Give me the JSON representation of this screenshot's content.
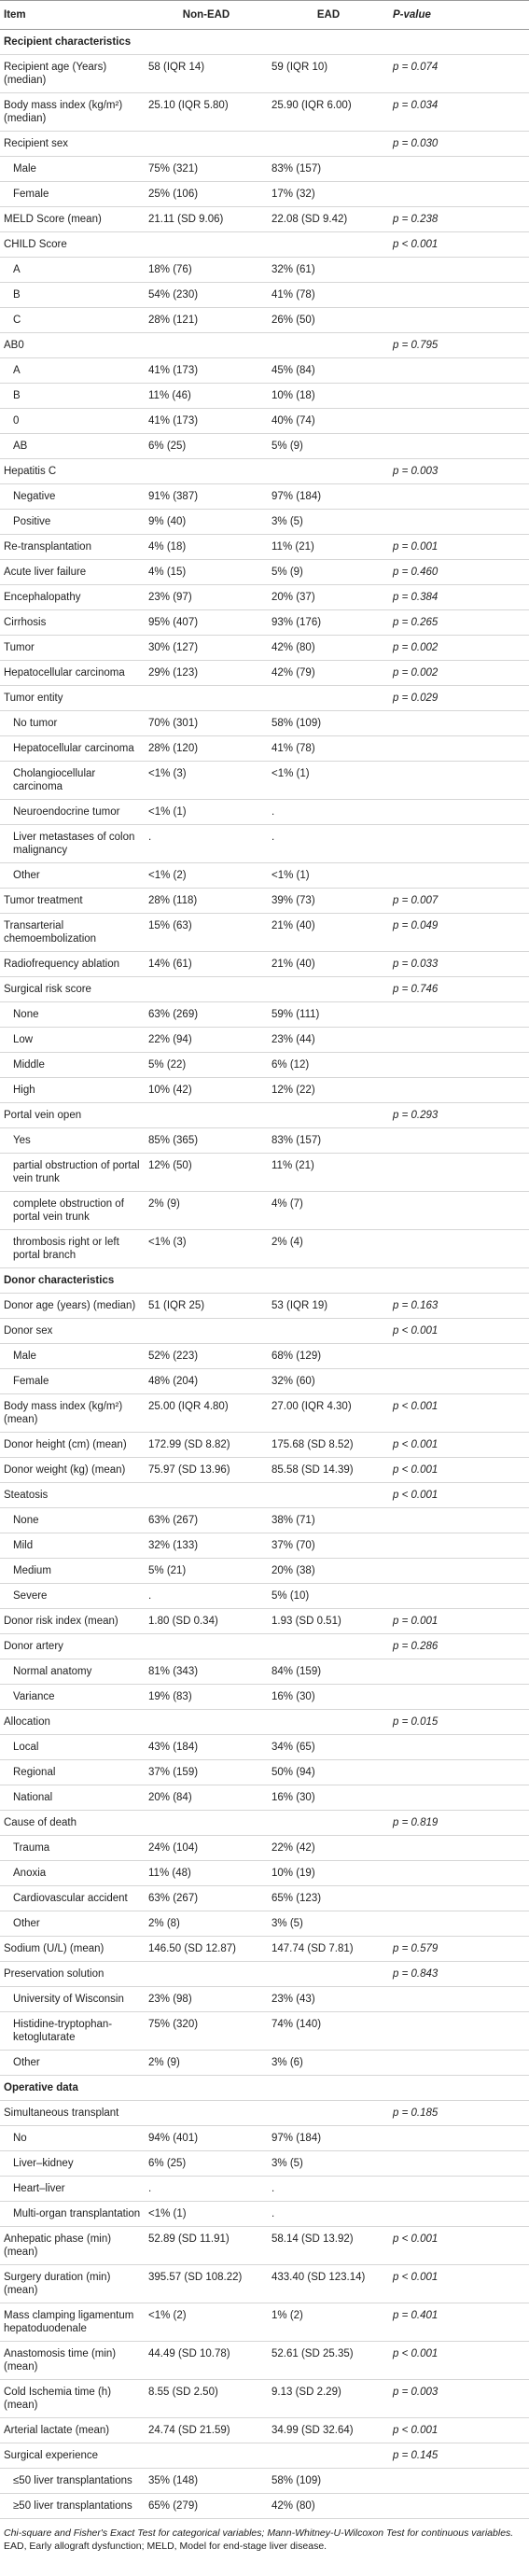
{
  "header": {
    "item": "Item",
    "non_ead": "Non-EAD",
    "ead": "EAD",
    "p_value": "P-value"
  },
  "sections": [
    {
      "title": "Recipient characteristics",
      "rows": [
        {
          "item": "Recipient age (Years) (median)",
          "non_ead": "58 (IQR 14)",
          "ead": "59 (IQR 10)",
          "p_value": "p = 0.074"
        },
        {
          "item": "Body mass index (kg/m²) (median)",
          "non_ead": "25.10 (IQR 5.80)",
          "ead": "25.90 (IQR 6.00)",
          "p_value": "p = 0.034"
        },
        {
          "item": "Recipient sex",
          "p_value": "p = 0.030",
          "children": [
            {
              "item": "Male",
              "non_ead": "75% (321)",
              "ead": "83% (157)"
            },
            {
              "item": "Female",
              "non_ead": "25% (106)",
              "ead": "17% (32)"
            }
          ]
        },
        {
          "item": "MELD Score (mean)",
          "non_ead": "21.11 (SD 9.06)",
          "ead": "22.08 (SD 9.42)",
          "p_value": "p = 0.238"
        },
        {
          "item": "CHILD Score",
          "p_value": "p < 0.001",
          "children": [
            {
              "item": "A",
              "non_ead": "18% (76)",
              "ead": "32% (61)"
            },
            {
              "item": "B",
              "non_ead": "54% (230)",
              "ead": "41% (78)"
            },
            {
              "item": "C",
              "non_ead": "28% (121)",
              "ead": "26% (50)"
            }
          ]
        },
        {
          "item": "AB0",
          "p_value": "p = 0.795",
          "children": [
            {
              "item": "A",
              "non_ead": "41% (173)",
              "ead": "45% (84)"
            },
            {
              "item": "B",
              "non_ead": "11% (46)",
              "ead": "10% (18)"
            },
            {
              "item": "0",
              "non_ead": "41% (173)",
              "ead": "40% (74)"
            },
            {
              "item": "AB",
              "non_ead": "6% (25)",
              "ead": "5% (9)"
            }
          ]
        },
        {
          "item": "Hepatitis C",
          "p_value": "p = 0.003",
          "children": [
            {
              "item": "Negative",
              "non_ead": "91% (387)",
              "ead": "97% (184)"
            },
            {
              "item": "Positive",
              "non_ead": "9% (40)",
              "ead": "3% (5)"
            }
          ]
        },
        {
          "item": "Re-transplantation",
          "non_ead": "4% (18)",
          "ead": "11% (21)",
          "p_value": "p = 0.001"
        },
        {
          "item": "Acute liver failure",
          "non_ead": "4% (15)",
          "ead": "5% (9)",
          "p_value": "p = 0.460"
        },
        {
          "item": "Encephalopathy",
          "non_ead": "23% (97)",
          "ead": "20% (37)",
          "p_value": "p = 0.384"
        },
        {
          "item": "Cirrhosis",
          "non_ead": "95% (407)",
          "ead": "93% (176)",
          "p_value": "p = 0.265"
        },
        {
          "item": "Tumor",
          "non_ead": "30% (127)",
          "ead": "42% (80)",
          "p_value": "p = 0.002"
        },
        {
          "item": "Hepatocellular carcinoma",
          "non_ead": "29% (123)",
          "ead": "42% (79)",
          "p_value": "p = 0.002"
        },
        {
          "item": "Tumor entity",
          "p_value": "p = 0.029",
          "children": [
            {
              "item": "No tumor",
              "non_ead": "70% (301)",
              "ead": "58% (109)"
            },
            {
              "item": "Hepatocellular carcinoma",
              "non_ead": "28% (120)",
              "ead": "41% (78)"
            },
            {
              "item": "Cholangiocellular carcinoma",
              "non_ead": "<1% (3)",
              "ead": "<1% (1)"
            },
            {
              "item": "Neuroendocrine tumor",
              "non_ead": "<1% (1)",
              "ead": "."
            },
            {
              "item": "Liver metastases of colon malignancy",
              "non_ead": ".",
              "ead": "."
            },
            {
              "item": "Other",
              "non_ead": "<1% (2)",
              "ead": "<1% (1)"
            }
          ]
        },
        {
          "item": "Tumor treatment",
          "non_ead": "28% (118)",
          "ead": "39% (73)",
          "p_value": "p = 0.007"
        },
        {
          "item": "Transarterial chemoembolization",
          "non_ead": "15% (63)",
          "ead": "21% (40)",
          "p_value": "p = 0.049"
        },
        {
          "item": "Radiofrequency ablation",
          "non_ead": "14% (61)",
          "ead": "21% (40)",
          "p_value": "p = 0.033"
        },
        {
          "item": "Surgical risk score",
          "p_value": "p = 0.746",
          "children": [
            {
              "item": "None",
              "non_ead": "63% (269)",
              "ead": "59% (111)"
            },
            {
              "item": "Low",
              "non_ead": "22% (94)",
              "ead": "23% (44)"
            },
            {
              "item": "Middle",
              "non_ead": "5% (22)",
              "ead": "6% (12)"
            },
            {
              "item": "High",
              "non_ead": "10% (42)",
              "ead": "12% (22)"
            }
          ]
        },
        {
          "item": "Portal vein open",
          "p_value": "p = 0.293",
          "children": [
            {
              "item": "Yes",
              "non_ead": "85% (365)",
              "ead": "83% (157)"
            },
            {
              "item": "partial obstruction of portal vein trunk",
              "non_ead": "12% (50)",
              "ead": "11% (21)"
            },
            {
              "item": "complete obstruction of portal vein trunk",
              "non_ead": "2% (9)",
              "ead": "4% (7)"
            },
            {
              "item": "thrombosis right or left portal branch",
              "non_ead": "<1% (3)",
              "ead": "2% (4)"
            }
          ]
        }
      ]
    },
    {
      "title": "Donor characteristics",
      "rows": [
        {
          "item": "Donor age (years) (median)",
          "non_ead": "51 (IQR 25)",
          "ead": "53 (IQR 19)",
          "p_value": "p = 0.163"
        },
        {
          "item": "Donor sex",
          "p_value": "p < 0.001",
          "children": [
            {
              "item": "Male",
              "non_ead": "52% (223)",
              "ead": "68% (129)"
            },
            {
              "item": "Female",
              "non_ead": "48% (204)",
              "ead": "32% (60)"
            }
          ]
        },
        {
          "item": "Body mass index (kg/m²) (mean)",
          "non_ead": "25.00 (IQR 4.80)",
          "ead": "27.00 (IQR 4.30)",
          "p_value": "p < 0.001"
        },
        {
          "item": "Donor height (cm) (mean)",
          "non_ead": "172.99 (SD 8.82)",
          "ead": "175.68 (SD 8.52)",
          "p_value": "p < 0.001"
        },
        {
          "item": "Donor weight (kg) (mean)",
          "non_ead": "75.97 (SD 13.96)",
          "ead": "85.58 (SD 14.39)",
          "p_value": "p < 0.001"
        },
        {
          "item": "Steatosis",
          "p_value": "p < 0.001",
          "children": [
            {
              "item": "None",
              "non_ead": "63% (267)",
              "ead": "38% (71)"
            },
            {
              "item": "Mild",
              "non_ead": "32% (133)",
              "ead": "37% (70)"
            },
            {
              "item": "Medium",
              "non_ead": "5% (21)",
              "ead": "20% (38)"
            },
            {
              "item": "Severe",
              "non_ead": ".",
              "ead": "5% (10)"
            }
          ]
        },
        {
          "item": "Donor risk index (mean)",
          "non_ead": "1.80 (SD 0.34)",
          "ead": "1.93 (SD 0.51)",
          "p_value": "p = 0.001"
        },
        {
          "item": "Donor artery",
          "p_value": "p = 0.286",
          "children": [
            {
              "item": "Normal anatomy",
              "non_ead": "81% (343)",
              "ead": "84% (159)"
            },
            {
              "item": "Variance",
              "non_ead": "19% (83)",
              "ead": "16% (30)"
            }
          ]
        },
        {
          "item": "Allocation",
          "p_value": "p = 0.015",
          "children": [
            {
              "item": "Local",
              "non_ead": "43% (184)",
              "ead": "34% (65)"
            },
            {
              "item": "Regional",
              "non_ead": "37% (159)",
              "ead": "50% (94)"
            },
            {
              "item": "National",
              "non_ead": "20% (84)",
              "ead": "16% (30)"
            }
          ]
        },
        {
          "item": "Cause of death",
          "p_value": "p = 0.819",
          "children": [
            {
              "item": "Trauma",
              "non_ead": "24% (104)",
              "ead": "22% (42)"
            },
            {
              "item": "Anoxia",
              "non_ead": "11% (48)",
              "ead": "10% (19)"
            },
            {
              "item": "Cardiovascular accident",
              "non_ead": "63% (267)",
              "ead": "65% (123)"
            },
            {
              "item": "Other",
              "non_ead": "2% (8)",
              "ead": "3% (5)"
            }
          ]
        },
        {
          "item": "Sodium (U/L) (mean)",
          "non_ead": "146.50 (SD 12.87)",
          "ead": "147.74 (SD 7.81)",
          "p_value": "p = 0.579"
        },
        {
          "item": "Preservation solution",
          "p_value": "p = 0.843",
          "children": [
            {
              "item": "University of Wisconsin",
              "non_ead": "23% (98)",
              "ead": "23% (43)"
            },
            {
              "item": "Histidine-tryptophan-ketoglutarate",
              "non_ead": "75% (320)",
              "ead": "74% (140)"
            },
            {
              "item": "Other",
              "non_ead": "2% (9)",
              "ead": "3% (6)"
            }
          ]
        }
      ]
    },
    {
      "title": "Operative data",
      "rows": [
        {
          "item": "Simultaneous transplant",
          "p_value": "p = 0.185",
          "children": [
            {
              "item": "No",
              "non_ead": "94% (401)",
              "ead": "97% (184)"
            },
            {
              "item": "Liver–kidney",
              "non_ead": "6% (25)",
              "ead": "3% (5)"
            },
            {
              "item": "Heart–liver",
              "non_ead": ".",
              "ead": "."
            },
            {
              "item": "Multi-organ transplantation",
              "non_ead": "<1% (1)",
              "ead": "."
            }
          ]
        },
        {
          "item": "Anhepatic phase (min) (mean)",
          "non_ead": "52.89 (SD 11.91)",
          "ead": "58.14 (SD 13.92)",
          "p_value": "p < 0.001"
        },
        {
          "item": "Surgery duration (min) (mean)",
          "non_ead": "395.57 (SD 108.22)",
          "ead": "433.40 (SD 123.14)",
          "p_value": "p < 0.001"
        },
        {
          "item": "Mass clamping ligamentum hepatoduodenale",
          "non_ead": "<1% (2)",
          "ead": "1% (2)",
          "p_value": "p = 0.401"
        },
        {
          "item": "Anastomosis time (min) (mean)",
          "non_ead": "44.49 (SD 10.78)",
          "ead": "52.61 (SD 25.35)",
          "p_value": "p < 0.001"
        },
        {
          "item": "Cold Ischemia time (h) (mean)",
          "non_ead": "8.55 (SD 2.50)",
          "ead": "9.13 (SD 2.29)",
          "p_value": "p = 0.003"
        },
        {
          "item": "Arterial lactate (mean)",
          "non_ead": "24.74 (SD 21.59)",
          "ead": "34.99 (SD 32.64)",
          "p_value": "p < 0.001"
        },
        {
          "item": "Surgical experience",
          "p_value": "p = 0.145",
          "children": [
            {
              "item": "≤50 liver transplantations",
              "non_ead": "35% (148)",
              "ead": "58% (109)"
            },
            {
              "item": "≥50 liver transplantations",
              "non_ead": "65% (279)",
              "ead": "42% (80)"
            }
          ]
        }
      ]
    }
  ],
  "footnotes": [
    "Chi-square and Fisher's Exact Test for categorical variables; Mann-Whitney-U-Wilcoxon Test for continuous variables.",
    "EAD, Early allograft dysfunction; MELD, Model for end-stage liver disease."
  ]
}
